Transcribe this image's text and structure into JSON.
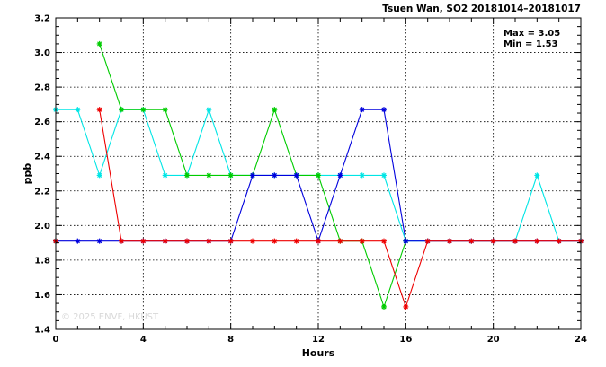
{
  "chart_data": {
    "type": "line",
    "title": "Tsuen Wan, SO2 20181014–20181017",
    "xlabel": "Hours",
    "ylabel": "ppb",
    "xlim": [
      0,
      24
    ],
    "ylim": [
      1.4,
      3.2
    ],
    "x_ticks": [
      0,
      4,
      8,
      12,
      16,
      20,
      24
    ],
    "y_ticks": [
      1.4,
      1.6,
      1.8,
      2.0,
      2.2,
      2.4,
      2.6,
      2.8,
      3.0,
      3.2
    ],
    "y_tick_labels": [
      "1.4",
      "1.6",
      "1.8",
      "2.0",
      "2.2",
      "2.4",
      "2.6",
      "2.8",
      "3.0",
      "3.2"
    ],
    "grid": true,
    "annotations": [
      "Max = 3.05",
      "Min = 1.53"
    ],
    "watermark": "© 2025  ENVF, HKUST",
    "x": [
      0,
      1,
      2,
      3,
      4,
      5,
      6,
      7,
      8,
      9,
      10,
      11,
      12,
      13,
      14,
      15,
      16,
      17,
      18,
      19,
      20,
      21,
      22,
      23,
      24
    ],
    "series": [
      {
        "color": "#00e5e5",
        "values": [
          2.67,
          2.67,
          2.29,
          2.67,
          2.67,
          2.29,
          2.29,
          2.67,
          2.29,
          2.29,
          2.29,
          2.29,
          2.29,
          2.29,
          2.29,
          2.29,
          1.91,
          1.91,
          1.91,
          1.91,
          1.91,
          1.91,
          2.29,
          1.91,
          1.91
        ]
      },
      {
        "color": "#00cc00",
        "values": [
          1.91,
          null,
          3.05,
          2.67,
          2.67,
          2.67,
          2.29,
          2.29,
          2.29,
          2.29,
          2.67,
          2.29,
          2.29,
          1.91,
          1.91,
          1.53,
          1.91,
          null,
          null,
          null,
          null,
          null,
          null,
          null,
          null
        ]
      },
      {
        "color": "#0000dd",
        "values": [
          1.91,
          1.91,
          1.91,
          1.91,
          1.91,
          1.91,
          1.91,
          1.91,
          1.91,
          2.29,
          2.29,
          2.29,
          1.91,
          2.29,
          2.67,
          2.67,
          1.91,
          1.91,
          1.91,
          1.91,
          1.91,
          1.91,
          1.91,
          1.91,
          1.91
        ]
      },
      {
        "color": "#ee0000",
        "values": [
          1.91,
          null,
          2.67,
          1.91,
          1.91,
          1.91,
          1.91,
          1.91,
          1.91,
          1.91,
          1.91,
          1.91,
          1.91,
          1.91,
          1.91,
          1.91,
          1.53,
          1.91,
          1.91,
          1.91,
          1.91,
          1.91,
          1.91,
          1.91,
          1.91
        ]
      }
    ]
  }
}
